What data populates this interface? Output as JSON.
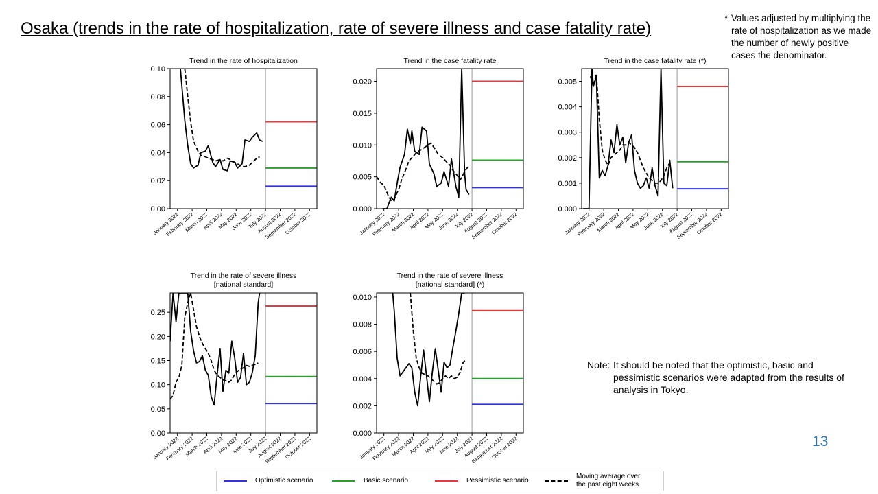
{
  "page": {
    "title": "Osaka (trends in the rate of hospitalization, rate of severe illness and case fatality rate)",
    "footnote_mark": "*",
    "footnote": "Values adjusted by multiplying the rate of hospitalization as we made the number of newly positive cases the denominator.",
    "note_label": "Note:",
    "note": "It should be noted that the optimistic, basic and pessimistic scenarios were adapted from the results of analysis in Tokyo.",
    "page_number": "13"
  },
  "colors": {
    "optimistic": "#3333dd",
    "basic": "#2ca02c",
    "pessimistic": "#e83a3a",
    "actual": "#000000",
    "divider": "#999999"
  },
  "legend": [
    {
      "key": "optimistic",
      "label": "Optimistic scenario",
      "style": "solid"
    },
    {
      "key": "basic",
      "label": "Basic scenario",
      "style": "solid"
    },
    {
      "key": "pessimistic",
      "label": "Pessimistic scenario",
      "style": "solid"
    },
    {
      "key": "moving_average",
      "label": "Moving average over the past eight weeks",
      "style": "dashed"
    }
  ],
  "month_labels": [
    "January 2022",
    "February 2022",
    "March 2022",
    "April 2022",
    "May 2022",
    "June 2022",
    "July 2022",
    "August 2022",
    "September 2022",
    "October 2022"
  ],
  "chart_data": [
    {
      "type": "line",
      "title": "Trend in the rate of hospitalization",
      "ylim": [
        0,
        0.1
      ],
      "yticks": [
        "0.00",
        "0.02",
        "0.04",
        "0.06",
        "0.08",
        "0.10"
      ],
      "xlim": [
        0,
        10
      ],
      "scenarios": {
        "optimistic": 0.016,
        "basic": 0.029,
        "pessimistic": 0.062
      },
      "series": [
        {
          "key": "actual",
          "x": [
            0.7,
            1.0,
            1.2,
            1.4,
            1.6,
            1.9,
            2.1,
            2.4,
            2.6,
            2.9,
            3.1,
            3.4,
            3.6,
            3.9,
            4.1,
            4.4,
            4.6,
            4.9,
            5.1,
            5.4,
            5.6,
            5.9,
            6.1,
            6.3
          ],
          "y": [
            0.1,
            0.063,
            0.045,
            0.032,
            0.029,
            0.031,
            0.04,
            0.041,
            0.045,
            0.033,
            0.03,
            0.035,
            0.028,
            0.027,
            0.034,
            0.033,
            0.029,
            0.032,
            0.049,
            0.048,
            0.051,
            0.054,
            0.049,
            0.048
          ]
        },
        {
          "key": "moving_average",
          "x": [
            1.0,
            1.2,
            1.4,
            1.6,
            1.9,
            2.1,
            2.4,
            2.6,
            2.9,
            3.1,
            3.4,
            3.6,
            3.9,
            4.1,
            4.4,
            4.6,
            4.9,
            5.1,
            5.4,
            5.6,
            5.9,
            6.1
          ],
          "y": [
            0.1,
            0.08,
            0.062,
            0.048,
            0.041,
            0.038,
            0.037,
            0.036,
            0.035,
            0.034,
            0.035,
            0.034,
            0.036,
            0.035,
            0.033,
            0.032,
            0.03,
            0.03,
            0.031,
            0.033,
            0.036,
            0.037
          ]
        }
      ]
    },
    {
      "type": "line",
      "title": "Trend in the case fatality rate",
      "ylim": [
        0,
        0.022
      ],
      "yticks": [
        "0.000",
        "0.005",
        "0.010",
        "0.015",
        "0.020"
      ],
      "xlim": [
        0,
        10
      ],
      "scenarios": {
        "optimistic": 0.0033,
        "basic": 0.0076,
        "pessimistic": 0.02
      },
      "series": [
        {
          "key": "actual",
          "x": [
            0.4,
            0.7,
            1.0,
            1.2,
            1.4,
            1.6,
            1.9,
            2.1,
            2.3,
            2.4,
            2.6,
            2.9,
            3.1,
            3.4,
            3.6,
            3.9,
            4.1,
            4.4,
            4.6,
            4.9,
            5.1,
            5.4,
            5.6,
            5.8,
            6.0,
            6.1,
            6.3
          ],
          "y": [
            0.0,
            0.0,
            0.0018,
            0.0012,
            0.004,
            0.0065,
            0.0085,
            0.0125,
            0.0102,
            0.0122,
            0.009,
            0.0085,
            0.0128,
            0.0122,
            0.007,
            0.0055,
            0.0035,
            0.004,
            0.0058,
            0.0035,
            0.0078,
            0.0035,
            0.0018,
            0.022,
            0.0055,
            0.003,
            0.0022
          ]
        },
        {
          "key": "moving_average",
          "x": [
            0.0,
            0.3,
            0.5,
            0.8,
            1.0,
            1.2,
            1.5,
            1.7,
            2.0,
            2.2,
            2.5,
            2.7,
            3.0,
            3.2,
            3.5,
            3.7,
            4.0,
            4.2,
            4.5,
            4.7,
            5.0,
            5.2,
            5.5,
            5.7,
            6.0,
            6.3
          ],
          "y": [
            0.005,
            0.004,
            0.0037,
            0.002,
            0.0012,
            0.0015,
            0.003,
            0.0045,
            0.0062,
            0.0075,
            0.0082,
            0.0088,
            0.0092,
            0.0095,
            0.01,
            0.0103,
            0.0093,
            0.0085,
            0.008,
            0.0075,
            0.0068,
            0.006,
            0.0052,
            0.0045,
            0.0058,
            0.0068
          ]
        }
      ]
    },
    {
      "type": "line",
      "title": "Trend in the case fatality rate (*)",
      "ylim": [
        0,
        0.0055
      ],
      "yticks": [
        "0.000",
        "0.001",
        "0.002",
        "0.003",
        "0.004",
        "0.005"
      ],
      "xlim": [
        0,
        10
      ],
      "scenarios": {
        "optimistic": 0.00078,
        "basic": 0.00184,
        "pessimistic": 0.0048
      },
      "series": [
        {
          "key": "actual",
          "x": [
            0.1,
            0.3,
            0.5,
            0.7,
            0.8,
            1.0,
            1.2,
            1.4,
            1.6,
            1.8,
            2.0,
            2.2,
            2.4,
            2.6,
            2.8,
            3.0,
            3.2,
            3.4,
            3.6,
            3.8,
            4.0,
            4.2,
            4.4,
            4.6,
            4.8,
            5.0,
            5.2,
            5.4,
            5.6,
            5.8,
            6.0,
            6.2
          ],
          "y": [
            0,
            0,
            0,
            0.0055,
            0.0048,
            0.0052,
            0.0012,
            0.0015,
            0.0013,
            0.0017,
            0.0027,
            0.0022,
            0.0033,
            0.0025,
            0.0028,
            0.0018,
            0.0026,
            0.0029,
            0.0015,
            0.001,
            0.0008,
            0.0009,
            0.0012,
            0.0008,
            0.0016,
            0.0009,
            0.0005,
            0.0055,
            0.001,
            0.0009,
            0.0019,
            0.0008
          ]
        },
        {
          "key": "moving_average",
          "x": [
            0.6,
            0.8,
            1.0,
            1.2,
            1.4,
            1.6,
            1.8,
            2.0,
            2.2,
            2.4,
            2.6,
            2.8,
            3.0,
            3.2,
            3.4,
            3.6,
            3.8,
            4.0,
            4.2,
            4.4,
            4.6,
            4.8,
            5.0,
            5.2,
            5.4,
            5.6,
            5.8,
            6.0
          ],
          "y": [
            0.0052,
            0.0048,
            0.0053,
            0.0035,
            0.0023,
            0.0019,
            0.0017,
            0.002,
            0.0021,
            0.0022,
            0.0023,
            0.0025,
            0.0025,
            0.0026,
            0.0025,
            0.0024,
            0.0022,
            0.0019,
            0.0016,
            0.0014,
            0.0012,
            0.0011,
            0.001,
            0.001,
            0.0011,
            0.0013,
            0.0016,
            0.0018
          ]
        }
      ]
    },
    {
      "type": "line",
      "title": "Trend in the rate of severe illness",
      "subtitle": "[national standard]",
      "ylim": [
        0,
        0.29
      ],
      "yticks": [
        "0.00",
        "0.05",
        "0.10",
        "0.15",
        "0.20",
        "0.25"
      ],
      "xlim": [
        0,
        10
      ],
      "scenarios": {
        "optimistic": 0.061,
        "basic": 0.117,
        "pessimistic": 0.263
      },
      "series": [
        {
          "key": "actual",
          "x": [
            0.0,
            0.2,
            0.4,
            0.6,
            0.8,
            1.0,
            1.2,
            1.4,
            1.6,
            1.8,
            2.0,
            2.2,
            2.4,
            2.6,
            2.8,
            3.0,
            3.2,
            3.4,
            3.6,
            3.8,
            4.0,
            4.2,
            4.4,
            4.6,
            4.8,
            5.0,
            5.2,
            5.4,
            5.6,
            5.8,
            6.0,
            6.1
          ],
          "y": [
            0.19,
            0.29,
            0.23,
            0.29,
            0.29,
            0.29,
            0.29,
            0.21,
            0.17,
            0.145,
            0.148,
            0.16,
            0.13,
            0.12,
            0.075,
            0.058,
            0.12,
            0.175,
            0.086,
            0.13,
            0.124,
            0.19,
            0.155,
            0.105,
            0.115,
            0.165,
            0.1,
            0.105,
            0.125,
            0.16,
            0.27,
            0.29
          ]
        },
        {
          "key": "moving_average",
          "x": [
            0.0,
            0.2,
            0.4,
            0.6,
            0.8,
            1.0,
            1.2,
            1.4,
            1.6,
            1.8,
            2.0,
            2.2,
            2.4,
            2.6,
            2.8,
            3.0,
            3.2,
            3.4,
            3.6,
            3.8,
            4.0,
            4.2,
            4.4,
            4.6,
            4.8,
            5.0,
            5.2,
            5.4,
            5.6,
            5.8,
            6.0
          ],
          "y": [
            0.07,
            0.078,
            0.105,
            0.115,
            0.14,
            0.24,
            0.27,
            0.29,
            0.255,
            0.22,
            0.2,
            0.185,
            0.175,
            0.165,
            0.15,
            0.13,
            0.12,
            0.115,
            0.11,
            0.108,
            0.105,
            0.11,
            0.122,
            0.128,
            0.132,
            0.135,
            0.14,
            0.138,
            0.14,
            0.142,
            0.145
          ]
        }
      ]
    },
    {
      "type": "line",
      "title": "Trend in the rate of severe illness",
      "subtitle": "[national standard] (*)",
      "ylim": [
        0,
        0.0103
      ],
      "yticks": [
        "0.000",
        "0.002",
        "0.004",
        "0.006",
        "0.008",
        "0.010"
      ],
      "xlim": [
        0,
        10
      ],
      "scenarios": {
        "optimistic": 0.0021,
        "basic": 0.004,
        "pessimistic": 0.009
      },
      "series": [
        {
          "key": "actual",
          "x": [
            1.1,
            1.2,
            1.4,
            1.6,
            1.8,
            2.0,
            2.2,
            2.4,
            2.6,
            2.8,
            3.0,
            3.2,
            3.4,
            3.6,
            3.8,
            4.0,
            4.2,
            4.4,
            4.6,
            4.8,
            5.0,
            5.2,
            5.4,
            5.6,
            5.8,
            6.0
          ],
          "y": [
            0.0103,
            0.009,
            0.0055,
            0.0042,
            0.0045,
            0.0048,
            0.0051,
            0.0048,
            0.003,
            0.002,
            0.0041,
            0.0061,
            0.0042,
            0.0023,
            0.0045,
            0.0062,
            0.0046,
            0.003,
            0.0052,
            0.0048,
            0.005,
            0.0063,
            0.0075,
            0.0088,
            0.0103,
            0.0103
          ]
        },
        {
          "key": "moving_average",
          "x": [
            2.3,
            2.5,
            2.7,
            2.9,
            3.1,
            3.3,
            3.5,
            3.7,
            3.9,
            4.1,
            4.3,
            4.5,
            4.7,
            4.9,
            5.1,
            5.3,
            5.5,
            5.7,
            5.9,
            6.1
          ],
          "y": [
            0.0103,
            0.0075,
            0.0055,
            0.0048,
            0.0044,
            0.0043,
            0.0042,
            0.004,
            0.0038,
            0.0036,
            0.0037,
            0.004,
            0.0042,
            0.004,
            0.0042,
            0.004,
            0.0041,
            0.0045,
            0.0052,
            0.0054
          ]
        }
      ]
    }
  ]
}
